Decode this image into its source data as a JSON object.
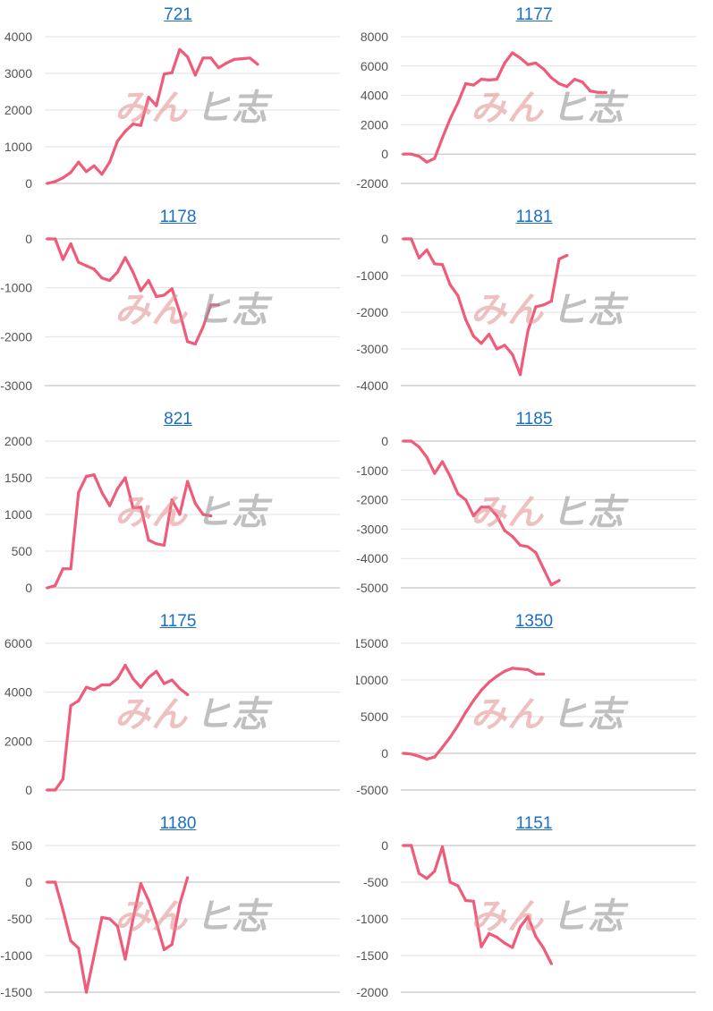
{
  "colors": {
    "line": "#f05b7a",
    "grid": "#e2e2e2",
    "axis": "#b8b8b8",
    "title_link": "#1a6fc4"
  },
  "watermark": {
    "part1": "みん",
    "part2": "ヒ志"
  },
  "chart_data": [
    {
      "type": "line",
      "title": "721",
      "ylim": [
        0,
        4000
      ],
      "yticks": [
        "4000",
        "3000",
        "2000",
        "1000",
        "0"
      ],
      "values": [
        0,
        50,
        150,
        300,
        580,
        320,
        480,
        250,
        580,
        1150,
        1420,
        1620,
        1580,
        2350,
        2120,
        2980,
        3020,
        3650,
        3450,
        2950,
        3420,
        3420,
        3150,
        3280,
        3380,
        3400,
        3420,
        3250
      ]
    },
    {
      "type": "line",
      "title": "1177",
      "ylim": [
        -2000,
        8000
      ],
      "yticks": [
        "8000",
        "6000",
        "4000",
        "2000",
        "0",
        "-2000"
      ],
      "values": [
        0,
        0,
        -150,
        -550,
        -300,
        1100,
        2400,
        3500,
        4800,
        4700,
        5100,
        5050,
        5100,
        6200,
        6900,
        6550,
        6100,
        6200,
        5800,
        5200,
        4800,
        4600,
        5100,
        4900,
        4300,
        4200,
        4200
      ]
    },
    {
      "type": "line",
      "title": "1178",
      "ylim": [
        -3000,
        0
      ],
      "yticks": [
        "0",
        "-1000",
        "-2000",
        "-3000"
      ],
      "values": [
        0,
        0,
        -420,
        -100,
        -480,
        -550,
        -620,
        -800,
        -850,
        -680,
        -380,
        -680,
        -1060,
        -850,
        -1180,
        -1150,
        -1020,
        -1500,
        -2100,
        -2150,
        -1800,
        -1350,
        -1350
      ]
    },
    {
      "type": "line",
      "title": "1181",
      "ylim": [
        -4000,
        0
      ],
      "yticks": [
        "0",
        "-1000",
        "-2000",
        "-3000",
        "-4000"
      ],
      "values": [
        0,
        0,
        -520,
        -300,
        -680,
        -700,
        -1250,
        -1550,
        -2200,
        -2650,
        -2850,
        -2600,
        -3000,
        -2900,
        -3150,
        -3700,
        -2500,
        -1850,
        -1800,
        -1700,
        -550,
        -450
      ]
    },
    {
      "type": "line",
      "title": "821",
      "ylim": [
        0,
        2000
      ],
      "yticks": [
        "2000",
        "1500",
        "1000",
        "500",
        "0"
      ],
      "values": [
        0,
        30,
        260,
        260,
        1300,
        1520,
        1540,
        1300,
        1120,
        1350,
        1500,
        1090,
        1100,
        650,
        600,
        580,
        1200,
        1000,
        1450,
        1150,
        1000,
        980
      ]
    },
    {
      "type": "line",
      "title": "1185",
      "ylim": [
        -5000,
        0
      ],
      "yticks": [
        "0",
        "-1000",
        "-2000",
        "-3000",
        "-4000",
        "-5000"
      ],
      "values": [
        0,
        0,
        -200,
        -550,
        -1100,
        -700,
        -1200,
        -1800,
        -2000,
        -2550,
        -2250,
        -2250,
        -2550,
        -3050,
        -3250,
        -3550,
        -3600,
        -3800,
        -4350,
        -4900,
        -4750
      ]
    },
    {
      "type": "line",
      "title": "1175",
      "ylim": [
        0,
        6000
      ],
      "yticks": [
        "6000",
        "4000",
        "2000",
        "0"
      ],
      "values": [
        0,
        0,
        450,
        3450,
        3650,
        4200,
        4100,
        4300,
        4300,
        4550,
        5100,
        4550,
        4200,
        4600,
        4850,
        4350,
        4500,
        4150,
        3900
      ]
    },
    {
      "type": "line",
      "title": "1350",
      "ylim": [
        -5000,
        15000
      ],
      "yticks": [
        "15000",
        "10000",
        "5000",
        "0",
        "-5000"
      ],
      "values": [
        0,
        -100,
        -400,
        -800,
        -500,
        800,
        2200,
        3800,
        5600,
        7200,
        8600,
        9700,
        10500,
        11200,
        11600,
        11500,
        11400,
        10800,
        10800
      ]
    },
    {
      "type": "line",
      "title": "1180",
      "ylim": [
        -1500,
        500
      ],
      "yticks": [
        "500",
        "0",
        "-500",
        "-1000",
        "-1500"
      ],
      "values": [
        0,
        0,
        -380,
        -800,
        -900,
        -1500,
        -1000,
        -480,
        -500,
        -600,
        -1050,
        -500,
        -20,
        -250,
        -550,
        -920,
        -850,
        -300,
        60
      ]
    },
    {
      "type": "line",
      "title": "1151",
      "ylim": [
        -2000,
        0
      ],
      "yticks": [
        "0",
        "-500",
        "-1000",
        "-1500",
        "-2000"
      ],
      "values": [
        0,
        0,
        -380,
        -450,
        -350,
        -20,
        -500,
        -550,
        -750,
        -760,
        -1380,
        -1200,
        -1250,
        -1330,
        -1390,
        -1110,
        -970,
        -1240,
        -1400,
        -1610
      ]
    }
  ]
}
